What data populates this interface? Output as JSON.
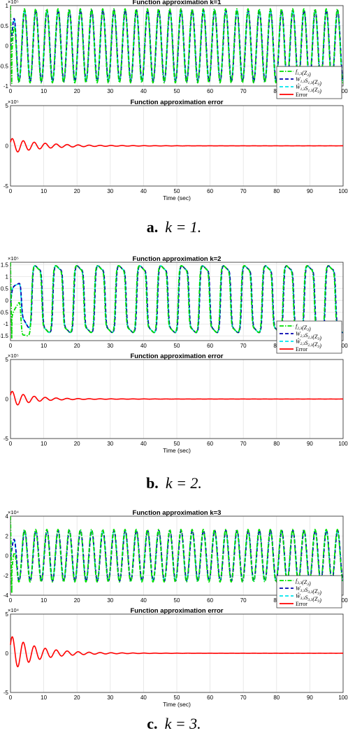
{
  "panels": [
    {
      "caption_letter": "a.",
      "caption_math": "k = 1.",
      "exponent_top": "×10⁵",
      "exponent_bottom": "×10⁵",
      "legend": [
        "f1,3(Z3)",
        "W1,3S1,3(Z3)",
        "Ŵ1,3S1,3(Z3)",
        "Error"
      ],
      "legend_labels": [
        {
          "main": "f",
          "sub": "1,3",
          "tail": "(Z",
          "sub2": "3",
          "end": ")"
        },
        {
          "main": "W",
          "sub": "1,3",
          "mid": "S",
          "sub1b": "1,3",
          "tail": "(Z",
          "sub2": "3",
          "end": ")"
        },
        {
          "main": "Ŵ",
          "sub": "1,3",
          "mid": "S",
          "sub1b": "1,3",
          "tail": "(Z",
          "sub2": "3",
          "end": ")"
        },
        {
          "main": "Error"
        }
      ]
    },
    {
      "caption_letter": "b.",
      "caption_math": "k = 2.",
      "exponent_top": "×10⁵",
      "exponent_bottom": "×10⁵",
      "legend": [
        "f2,3(Z3)",
        "W2,3S2,3(Z3)",
        "Ŵ2,3S2,3(Z3)",
        "Error"
      ]
    },
    {
      "caption_letter": "c.",
      "caption_math": "k = 3.",
      "exponent_top": "×10⁴",
      "exponent_bottom": "×10⁴",
      "legend": [
        "f3,3(Z3)",
        "W3,3S3,3(Z3)",
        "Ŵ3,3S3,3(Z3)",
        "Error"
      ]
    }
  ],
  "chart_data": [
    {
      "type": "line",
      "title": "Function approximation k=1",
      "x_range": [
        0,
        100
      ],
      "y_range": [
        -1,
        1
      ],
      "y_scale_label": "×10⁵",
      "x_ticks": [
        0,
        10,
        20,
        30,
        40,
        50,
        60,
        70,
        80,
        90,
        100
      ],
      "y_ticks": [
        -1,
        -0.5,
        0,
        0.5,
        1
      ],
      "y_tick_labels": [
        "-1",
        "-0.5",
        "0",
        "0.5",
        "1"
      ],
      "oscillation_period": 3.36,
      "amplitude": 0.9,
      "transient_until": 1.5,
      "series": [
        {
          "name": "f1,3(Z3)",
          "color": "#00e000",
          "style": "dash-dot"
        },
        {
          "name": "W1,3S1,3(Z3)",
          "color": "#0000b0",
          "style": "dashed"
        },
        {
          "name": "Ŵ1,3S1,3(Z3)",
          "color": "#00e5ee",
          "style": "dashed"
        }
      ],
      "legend_position": "bottom-right"
    },
    {
      "type": "line",
      "title": "Function approximation error",
      "x_range": [
        0,
        100
      ],
      "y_range": [
        -5,
        5
      ],
      "xlabel": "Time (sec)",
      "y_scale_label": "×10⁵",
      "x_ticks": [
        0,
        10,
        20,
        30,
        40,
        50,
        60,
        70,
        80,
        90,
        100
      ],
      "y_ticks": [
        -5,
        0,
        5
      ],
      "series": [
        {
          "name": "Error",
          "color": "#ff0000",
          "style": "solid",
          "initial_amplitude": 0.9,
          "decay_time": 9
        }
      ]
    },
    {
      "type": "line",
      "title": "Function approximation k=2",
      "x_range": [
        0,
        100
      ],
      "y_range": [
        -1.7,
        1.6
      ],
      "y_scale_label": "×10⁵",
      "x_ticks": [
        0,
        10,
        20,
        30,
        40,
        50,
        60,
        70,
        80,
        90,
        100
      ],
      "y_ticks": [
        -1.5,
        -1,
        -0.5,
        0,
        0.5,
        1,
        1.5
      ],
      "y_tick_labels": [
        "-1.5",
        "-1",
        "-0.5",
        "0",
        "0.5",
        "1",
        "1.5"
      ],
      "oscillation_period": 6.3,
      "amplitude_high": 1.4,
      "amplitude_low": -1.3,
      "transient_until": 7,
      "series": [
        {
          "name": "f2,3(Z3)",
          "color": "#00e000",
          "style": "dash-dot"
        },
        {
          "name": "W2,3S2,3(Z3)",
          "color": "#0000b0",
          "style": "dashed"
        },
        {
          "name": "Ŵ2,3S2,3(Z3)",
          "color": "#00e5ee",
          "style": "dashed"
        }
      ],
      "legend_position": "bottom-right"
    },
    {
      "type": "line",
      "title": "Function approximation error",
      "x_range": [
        0,
        100
      ],
      "y_range": [
        -5,
        5
      ],
      "xlabel": "Time (sec)",
      "y_scale_label": "×10⁵",
      "x_ticks": [
        0,
        10,
        20,
        30,
        40,
        50,
        60,
        70,
        80,
        90,
        100
      ],
      "y_ticks": [
        -5,
        0,
        5
      ],
      "series": [
        {
          "name": "Error",
          "color": "#ff0000",
          "style": "solid",
          "initial_amplitude": 1.0,
          "decay_time": 6
        }
      ]
    },
    {
      "type": "line",
      "title": "Function approximation k=3",
      "x_range": [
        0,
        100
      ],
      "y_range": [
        -4,
        4
      ],
      "y_scale_label": "×10⁴",
      "x_ticks": [
        0,
        10,
        20,
        30,
        40,
        50,
        60,
        70,
        80,
        90,
        100
      ],
      "y_ticks": [
        -4,
        -2,
        0,
        2,
        4
      ],
      "y_tick_labels": [
        "-4",
        "-2",
        "0",
        "2",
        "4"
      ],
      "oscillation_period": 3.36,
      "amplitude": 2.6,
      "transient_until": 2,
      "series": [
        {
          "name": "f3,3(Z3)",
          "color": "#00e000",
          "style": "dash-dot"
        },
        {
          "name": "W3,3S3,3(Z3)",
          "color": "#0000b0",
          "style": "dashed"
        },
        {
          "name": "Ŵ3,3S3,3(Z3)",
          "color": "#00e5ee",
          "style": "dashed"
        }
      ],
      "legend_position": "bottom-right"
    },
    {
      "type": "line",
      "title": "Function approximation error",
      "x_range": [
        0,
        100
      ],
      "y_range": [
        -5,
        5
      ],
      "xlabel": "Time (sec)",
      "y_scale_label": "×10⁴",
      "x_ticks": [
        0,
        10,
        20,
        30,
        40,
        50,
        60,
        70,
        80,
        90,
        100
      ],
      "y_ticks": [
        -5,
        0,
        5
      ],
      "series": [
        {
          "name": "Error",
          "color": "#ff0000",
          "style": "solid",
          "initial_amplitude": 2.2,
          "decay_time": 8
        }
      ]
    }
  ]
}
